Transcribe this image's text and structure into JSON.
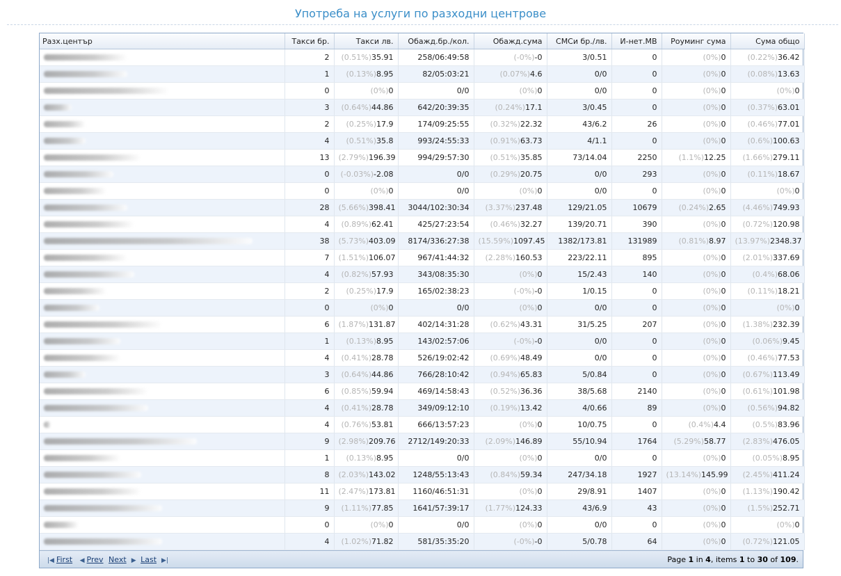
{
  "title": "Употреба на услуги по разходни центрове",
  "table": {
    "headers": [
      "Разх.център",
      "Такси бр.",
      "Такси лв.",
      "Обажд.бр./кол.",
      "Обажд.сума",
      "СМСи бр./лв.",
      "И-нет.MB",
      "Роуминг сума",
      "Сума общо"
    ],
    "rows": [
      [
        "2",
        [
          "(0.51%)",
          "35.91"
        ],
        "258/06:49:58",
        [
          "(-0%)",
          "-0"
        ],
        "3/0.51",
        "0",
        [
          "(0%)",
          "0"
        ],
        [
          "(0.22%)",
          "36.42"
        ]
      ],
      [
        "1",
        [
          "(0.13%)",
          "8.95"
        ],
        "82/05:03:21",
        [
          "(0.07%)",
          "4.6"
        ],
        "0/0",
        "0",
        [
          "(0%)",
          "0"
        ],
        [
          "(0.08%)",
          "13.63"
        ]
      ],
      [
        "0",
        [
          "(0%)",
          "0"
        ],
        "0/0",
        [
          "(0%)",
          "0"
        ],
        "0/0",
        "0",
        [
          "(0%)",
          "0"
        ],
        [
          "(0%)",
          "0"
        ]
      ],
      [
        "3",
        [
          "(0.64%)",
          "44.86"
        ],
        "642/20:39:35",
        [
          "(0.24%)",
          "17.1"
        ],
        "3/0.45",
        "0",
        [
          "(0%)",
          "0"
        ],
        [
          "(0.37%)",
          "63.01"
        ]
      ],
      [
        "2",
        [
          "(0.25%)",
          "17.9"
        ],
        "174/09:25:55",
        [
          "(0.32%)",
          "22.32"
        ],
        "43/6.2",
        "26",
        [
          "(0%)",
          "0"
        ],
        [
          "(0.46%)",
          "77.01"
        ]
      ],
      [
        "4",
        [
          "(0.51%)",
          "35.8"
        ],
        "993/24:55:33",
        [
          "(0.91%)",
          "63.73"
        ],
        "4/1.1",
        "0",
        [
          "(0%)",
          "0"
        ],
        [
          "(0.6%)",
          "100.63"
        ]
      ],
      [
        "13",
        [
          "(2.79%)",
          "196.39"
        ],
        "994/29:57:30",
        [
          "(0.51%)",
          "35.85"
        ],
        "73/14.04",
        "2250",
        [
          "(1.1%)",
          "12.25"
        ],
        [
          "(1.66%)",
          "279.11"
        ]
      ],
      [
        "0",
        [
          "(-0.03%)",
          "-2.08"
        ],
        "0/0",
        [
          "(0.29%)",
          "20.75"
        ],
        "0/0",
        "293",
        [
          "(0%)",
          "0"
        ],
        [
          "(0.11%)",
          "18.67"
        ]
      ],
      [
        "0",
        [
          "(0%)",
          "0"
        ],
        "0/0",
        [
          "(0%)",
          "0"
        ],
        "0/0",
        "0",
        [
          "(0%)",
          "0"
        ],
        [
          "(0%)",
          "0"
        ]
      ],
      [
        "28",
        [
          "(5.66%)",
          "398.41"
        ],
        "3044/102:30:34",
        [
          "(3.37%)",
          "237.48"
        ],
        "129/21.05",
        "10679",
        [
          "(0.24%)",
          "2.65"
        ],
        [
          "(4.46%)",
          "749.93"
        ]
      ],
      [
        "4",
        [
          "(0.89%)",
          "62.41"
        ],
        "425/27:23:54",
        [
          "(0.46%)",
          "32.27"
        ],
        "139/20.71",
        "390",
        [
          "(0%)",
          "0"
        ],
        [
          "(0.72%)",
          "120.98"
        ]
      ],
      [
        "38",
        [
          "(5.73%)",
          "403.09"
        ],
        "8174/336:27:38",
        [
          "(15.59%)",
          "1097.45"
        ],
        "1382/173.81",
        "131989",
        [
          "(0.81%)",
          "8.97"
        ],
        [
          "(13.97%)",
          "2348.37"
        ]
      ],
      [
        "7",
        [
          "(1.51%)",
          "106.07"
        ],
        "967/41:44:32",
        [
          "(2.28%)",
          "160.53"
        ],
        "223/22.11",
        "895",
        [
          "(0%)",
          "0"
        ],
        [
          "(2.01%)",
          "337.69"
        ]
      ],
      [
        "4",
        [
          "(0.82%)",
          "57.93"
        ],
        "343/08:35:30",
        [
          "(0%)",
          "0"
        ],
        "15/2.43",
        "140",
        [
          "(0%)",
          "0"
        ],
        [
          "(0.4%)",
          "68.06"
        ]
      ],
      [
        "2",
        [
          "(0.25%)",
          "17.9"
        ],
        "165/02:38:23",
        [
          "(-0%)",
          "-0"
        ],
        "1/0.15",
        "0",
        [
          "(0%)",
          "0"
        ],
        [
          "(0.11%)",
          "18.21"
        ]
      ],
      [
        "0",
        [
          "(0%)",
          "0"
        ],
        "0/0",
        [
          "(0%)",
          "0"
        ],
        "0/0",
        "0",
        [
          "(0%)",
          "0"
        ],
        [
          "(0%)",
          "0"
        ]
      ],
      [
        "6",
        [
          "(1.87%)",
          "131.87"
        ],
        "402/14:31:28",
        [
          "(0.62%)",
          "43.31"
        ],
        "31/5.25",
        "207",
        [
          "(0%)",
          "0"
        ],
        [
          "(1.38%)",
          "232.39"
        ]
      ],
      [
        "1",
        [
          "(0.13%)",
          "8.95"
        ],
        "143/02:57:06",
        [
          "(-0%)",
          "-0"
        ],
        "0/0",
        "0",
        [
          "(0%)",
          "0"
        ],
        [
          "(0.06%)",
          "9.45"
        ]
      ],
      [
        "4",
        [
          "(0.41%)",
          "28.78"
        ],
        "526/19:02:42",
        [
          "(0.69%)",
          "48.49"
        ],
        "0/0",
        "0",
        [
          "(0%)",
          "0"
        ],
        [
          "(0.46%)",
          "77.53"
        ]
      ],
      [
        "3",
        [
          "(0.64%)",
          "44.86"
        ],
        "766/28:10:42",
        [
          "(0.94%)",
          "65.83"
        ],
        "5/0.84",
        "0",
        [
          "(0%)",
          "0"
        ],
        [
          "(0.67%)",
          "113.49"
        ]
      ],
      [
        "6",
        [
          "(0.85%)",
          "59.94"
        ],
        "469/14:58:43",
        [
          "(0.52%)",
          "36.36"
        ],
        "38/5.68",
        "2140",
        [
          "(0%)",
          "0"
        ],
        [
          "(0.61%)",
          "101.98"
        ]
      ],
      [
        "4",
        [
          "(0.41%)",
          "28.78"
        ],
        "349/09:12:10",
        [
          "(0.19%)",
          "13.42"
        ],
        "4/0.66",
        "89",
        [
          "(0%)",
          "0"
        ],
        [
          "(0.56%)",
          "94.82"
        ]
      ],
      [
        "4",
        [
          "(0.76%)",
          "53.81"
        ],
        "666/13:57:23",
        [
          "(0%)",
          "0"
        ],
        "10/0.75",
        "0",
        [
          "(0.4%)",
          "4.4"
        ],
        [
          "(0.5%)",
          "83.96"
        ]
      ],
      [
        "9",
        [
          "(2.98%)",
          "209.76"
        ],
        "2712/149:20:33",
        [
          "(2.09%)",
          "146.89"
        ],
        "55/10.94",
        "1764",
        [
          "(5.29%)",
          "58.77"
        ],
        [
          "(2.83%)",
          "476.05"
        ]
      ],
      [
        "1",
        [
          "(0.13%)",
          "8.95"
        ],
        "0/0",
        [
          "(0%)",
          "0"
        ],
        "0/0",
        "0",
        [
          "(0%)",
          "0"
        ],
        [
          "(0.05%)",
          "8.95"
        ]
      ],
      [
        "8",
        [
          "(2.03%)",
          "143.02"
        ],
        "1248/55:13:43",
        [
          "(0.84%)",
          "59.34"
        ],
        "247/34.18",
        "1927",
        [
          "(13.14%)",
          "145.99"
        ],
        [
          "(2.45%)",
          "411.24"
        ]
      ],
      [
        "11",
        [
          "(2.47%)",
          "173.81"
        ],
        "1160/46:51:31",
        [
          "(0%)",
          "0"
        ],
        "29/8.91",
        "1407",
        [
          "(0%)",
          "0"
        ],
        [
          "(1.13%)",
          "190.42"
        ]
      ],
      [
        "9",
        [
          "(1.11%)",
          "77.85"
        ],
        "1641/57:39:17",
        [
          "(1.77%)",
          "124.33"
        ],
        "43/6.9",
        "43",
        [
          "(0%)",
          "0"
        ],
        [
          "(1.5%)",
          "252.71"
        ]
      ],
      [
        "0",
        [
          "(0%)",
          "0"
        ],
        "0/0",
        [
          "(0%)",
          "0"
        ],
        "0/0",
        "0",
        [
          "(0%)",
          "0"
        ],
        [
          "(0%)",
          "0"
        ]
      ],
      [
        "4",
        [
          "(1.02%)",
          "71.82"
        ],
        "581/35:35:20",
        [
          "(-0%)",
          "-0"
        ],
        "5/0.78",
        "64",
        [
          "(0%)",
          "0"
        ],
        [
          "(0.72%)",
          "121.05"
        ]
      ]
    ]
  },
  "pager": {
    "first": "First",
    "prev": "Prev",
    "next": "Next",
    "last": "Last",
    "summary": [
      "Page ",
      "1",
      " in ",
      "4",
      ", items ",
      "1",
      " to ",
      "30",
      " of ",
      "109",
      "."
    ]
  }
}
